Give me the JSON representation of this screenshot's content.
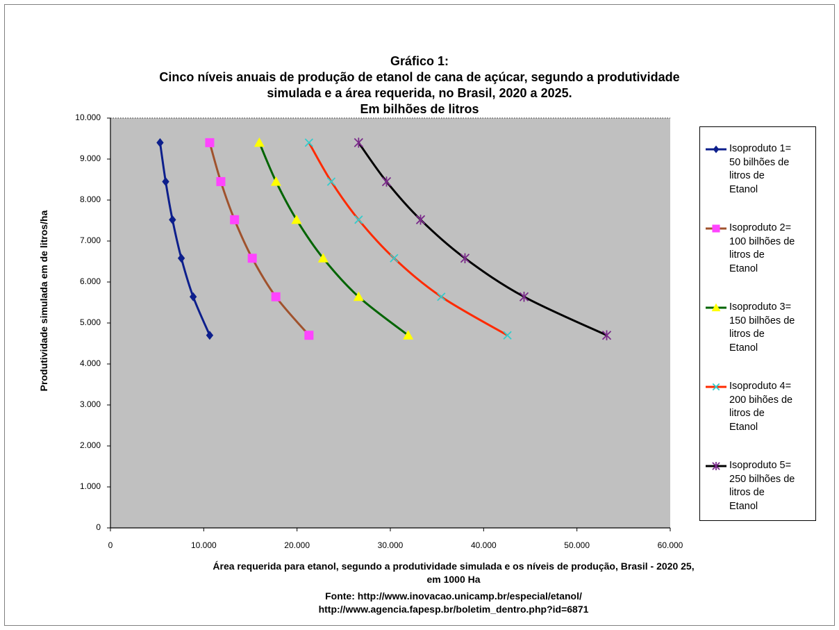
{
  "chart_data": {
    "type": "line",
    "title_lines": [
      "Gráfico 1:",
      "Cinco níveis anuais de produção de etanol de cana de açúcar, segundo a produtividade",
      "simulada e a área requerida, no Brasil, 2020 a 2025.",
      "Em bilhões de litros"
    ],
    "ylabel": "Produtividade simulada  em  de litros/ha",
    "xlabel_lines": [
      "Área requerida para etanol, segundo a produtividade simulada e os níveis de produção, Brasil - 2020 25,",
      "em 1000 Ha",
      "Fonte: http://www.inovacao.unicamp.br/especial/etanol/",
      "http://www.agencia.fapesp.br/boletim_dentro.php?id=6871"
    ],
    "xlim": [
      0,
      60000
    ],
    "ylim": [
      0,
      10000
    ],
    "x_ticks": [
      "0",
      "10.000",
      "20.000",
      "30.000",
      "40.000",
      "50.000",
      "60.000"
    ],
    "y_ticks": [
      "0",
      "1.000",
      "2.000",
      "3.000",
      "4.000",
      "5.000",
      "6.000",
      "7.000",
      "8.000",
      "9.000",
      "10.000"
    ],
    "plot_background": "#c0c0c0",
    "legend_position": "right",
    "y": [
      9400,
      8450,
      7520,
      6580,
      5640,
      4700
    ],
    "series": [
      {
        "name_lines": [
          "Isoproduto 1=",
          "50 bilhões de",
          "litros de",
          "Etanol"
        ],
        "x": [
          5320,
          5920,
          6650,
          7600,
          8870,
          10640
        ],
        "color": "#0d1f8c",
        "marker": "diamond",
        "marker_color": "#0d1f8c"
      },
      {
        "name_lines": [
          "Isoproduto 2=",
          "100 bilhões de",
          "litros de",
          "Etanol"
        ],
        "x": [
          10640,
          11830,
          13300,
          15200,
          17730,
          21280
        ],
        "color": "#a0522d",
        "marker": "square",
        "marker_color": "#ff44ff"
      },
      {
        "name_lines": [
          "Isoproduto 3=",
          "150 bilhões de",
          "litros de",
          "Etanol"
        ],
        "x": [
          15960,
          17750,
          19950,
          22800,
          26600,
          31910
        ],
        "color": "#006400",
        "marker": "triangle",
        "marker_color": "#ffff00"
      },
      {
        "name_lines": [
          "Isoproduto 4=",
          "200 bihões de",
          "litros de",
          "Etanol"
        ],
        "x": [
          21280,
          23670,
          26600,
          30400,
          35460,
          42550
        ],
        "color": "#ff2a00",
        "marker": "x",
        "marker_color": "#33cccc"
      },
      {
        "name_lines": [
          "Isoproduto 5=",
          "250 bilhões de",
          "litros de",
          "Etanol"
        ],
        "x": [
          26600,
          29590,
          33240,
          38000,
          44330,
          53190
        ],
        "color": "#000000",
        "marker": "star",
        "marker_color": "#7a2a8a"
      }
    ]
  }
}
